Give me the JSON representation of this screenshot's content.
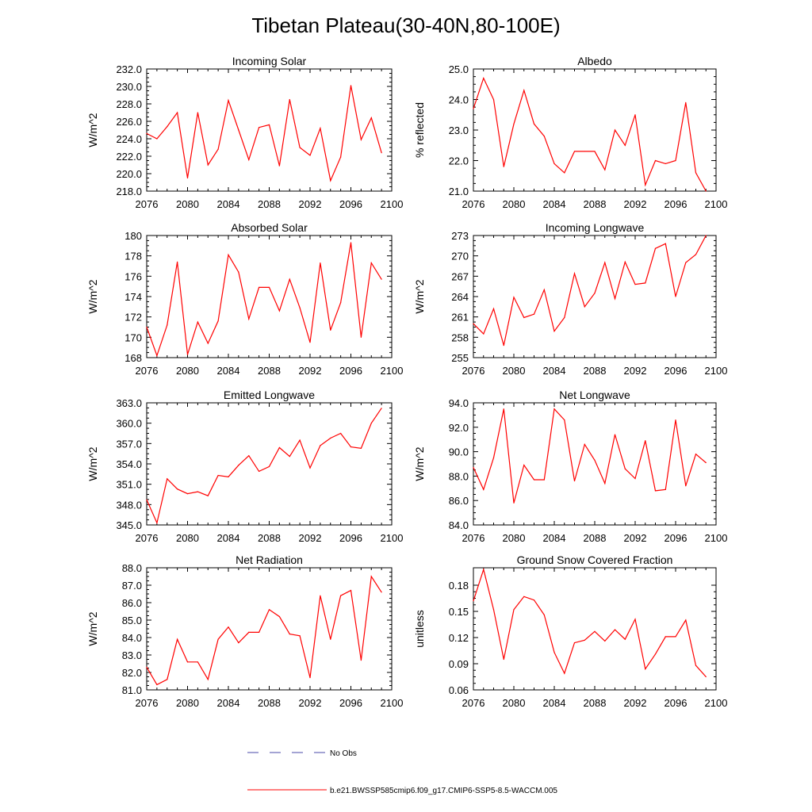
{
  "title": "Tibetan Plateau(30-40N,80-100E)",
  "legend": {
    "obs_label": "No Obs",
    "model_label": "b.e21.BWSSP585cmip6.f09_g17.CMIP6-SSP5-8.5-WACCM.005",
    "obs_color": "#4a4aa8",
    "model_color": "#ff0000"
  },
  "chart_data": [
    {
      "type": "line",
      "title": "Incoming Solar",
      "ylabel": "W/m^2",
      "xlim": [
        2076,
        2100
      ],
      "ylim": [
        218,
        232
      ],
      "xticks": [
        2076,
        2080,
        2084,
        2088,
        2092,
        2096,
        2100
      ],
      "xtick_labels": [
        "2076",
        "2080",
        "2084",
        "2088",
        "2092",
        "2096",
        "2100"
      ],
      "yticks": [
        218,
        220,
        222,
        224,
        226,
        228,
        230,
        232
      ],
      "ytick_labels": [
        "218.0",
        "220.0",
        "222.0",
        "224.0",
        "226.0",
        "228.0",
        "230.0",
        "232.0"
      ],
      "x": [
        2076,
        2077,
        2078,
        2079,
        2080,
        2081,
        2082,
        2083,
        2084,
        2085,
        2086,
        2087,
        2088,
        2089,
        2090,
        2091,
        2092,
        2093,
        2094,
        2095,
        2096,
        2097,
        2098,
        2099
      ],
      "y": [
        224.6,
        224.0,
        225.4,
        227.0,
        219.5,
        227.0,
        221.0,
        222.8,
        228.4,
        225.0,
        221.6,
        225.3,
        225.6,
        220.9,
        228.5,
        223.0,
        222.1,
        225.2,
        219.2,
        221.9,
        230.1,
        223.9,
        226.4,
        222.4
      ]
    },
    {
      "type": "line",
      "title": "Albedo",
      "ylabel": "% reflected",
      "xlim": [
        2076,
        2100
      ],
      "ylim": [
        21,
        25
      ],
      "xticks": [
        2076,
        2080,
        2084,
        2088,
        2092,
        2096,
        2100
      ],
      "xtick_labels": [
        "2076",
        "2080",
        "2084",
        "2088",
        "2092",
        "2096",
        "2100"
      ],
      "yticks": [
        21,
        22,
        23,
        24,
        25
      ],
      "ytick_labels": [
        "21.0",
        "22.0",
        "23.0",
        "24.0",
        "25.0"
      ],
      "x": [
        2076,
        2077,
        2078,
        2079,
        2080,
        2081,
        2082,
        2083,
        2084,
        2085,
        2086,
        2087,
        2088,
        2089,
        2090,
        2091,
        2092,
        2093,
        2094,
        2095,
        2096,
        2097,
        2098,
        2099
      ],
      "y": [
        23.7,
        24.7,
        24.0,
        21.8,
        23.2,
        24.3,
        23.2,
        22.8,
        21.9,
        21.6,
        22.3,
        22.3,
        22.3,
        21.7,
        23.0,
        22.5,
        23.5,
        21.2,
        22.0,
        21.9,
        22.0,
        23.9,
        21.6,
        21.0
      ]
    },
    {
      "type": "line",
      "title": "Absorbed Solar",
      "ylabel": "W/m^2",
      "xlim": [
        2076,
        2100
      ],
      "ylim": [
        168,
        180
      ],
      "xticks": [
        2076,
        2080,
        2084,
        2088,
        2092,
        2096,
        2100
      ],
      "xtick_labels": [
        "2076",
        "2080",
        "2084",
        "2088",
        "2092",
        "2096",
        "2100"
      ],
      "yticks": [
        168,
        170,
        172,
        174,
        176,
        178,
        180
      ],
      "ytick_labels": [
        "168",
        "170",
        "172",
        "174",
        "176",
        "178",
        "180"
      ],
      "x": [
        2076,
        2077,
        2078,
        2079,
        2080,
        2081,
        2082,
        2083,
        2084,
        2085,
        2086,
        2087,
        2088,
        2089,
        2090,
        2091,
        2092,
        2093,
        2094,
        2095,
        2096,
        2097,
        2098,
        2099
      ],
      "y": [
        171.0,
        168.2,
        171.2,
        177.4,
        168.3,
        171.5,
        169.4,
        171.6,
        178.1,
        176.4,
        171.8,
        174.9,
        174.9,
        172.6,
        175.7,
        172.9,
        169.5,
        177.3,
        170.7,
        173.4,
        179.3,
        170.0,
        177.3,
        175.7
      ]
    },
    {
      "type": "line",
      "title": "Incoming Longwave",
      "ylabel": "W/m^2",
      "xlim": [
        2076,
        2100
      ],
      "ylim": [
        255,
        273
      ],
      "xticks": [
        2076,
        2080,
        2084,
        2088,
        2092,
        2096,
        2100
      ],
      "xtick_labels": [
        "2076",
        "2080",
        "2084",
        "2088",
        "2092",
        "2096",
        "2100"
      ],
      "yticks": [
        255,
        258,
        261,
        264,
        267,
        270,
        273
      ],
      "ytick_labels": [
        "255",
        "258",
        "261",
        "264",
        "267",
        "270",
        "273"
      ],
      "x": [
        2076,
        2077,
        2078,
        2079,
        2080,
        2081,
        2082,
        2083,
        2084,
        2085,
        2086,
        2087,
        2088,
        2089,
        2090,
        2091,
        2092,
        2093,
        2094,
        2095,
        2096,
        2097,
        2098,
        2099
      ],
      "y": [
        260.0,
        258.5,
        262.2,
        256.8,
        263.9,
        260.9,
        261.4,
        265.0,
        258.9,
        260.9,
        267.4,
        262.5,
        264.5,
        269.0,
        263.7,
        269.1,
        265.8,
        266.0,
        271.1,
        271.8,
        264.0,
        269.0,
        270.2,
        273.0
      ]
    },
    {
      "type": "line",
      "title": "Emitted Longwave",
      "ylabel": "W/m^2",
      "xlim": [
        2076,
        2100
      ],
      "ylim": [
        345,
        363
      ],
      "xticks": [
        2076,
        2080,
        2084,
        2088,
        2092,
        2096,
        2100
      ],
      "xtick_labels": [
        "2076",
        "2080",
        "2084",
        "2088",
        "2092",
        "2096",
        "2100"
      ],
      "yticks": [
        345,
        348,
        351,
        354,
        357,
        360,
        363
      ],
      "ytick_labels": [
        "345.0",
        "348.0",
        "351.0",
        "354.0",
        "357.0",
        "360.0",
        "363.0"
      ],
      "x": [
        2076,
        2077,
        2078,
        2079,
        2080,
        2081,
        2082,
        2083,
        2084,
        2085,
        2086,
        2087,
        2088,
        2089,
        2090,
        2091,
        2092,
        2093,
        2094,
        2095,
        2096,
        2097,
        2098,
        2099
      ],
      "y": [
        348.7,
        345.3,
        351.8,
        350.3,
        349.6,
        349.9,
        349.3,
        352.3,
        352.1,
        353.8,
        355.2,
        352.9,
        353.6,
        356.4,
        355.1,
        357.5,
        353.4,
        356.7,
        357.8,
        358.5,
        356.5,
        356.3,
        360.0,
        362.2
      ]
    },
    {
      "type": "line",
      "title": "Net Longwave",
      "ylabel": "W/m^2",
      "xlim": [
        2076,
        2100
      ],
      "ylim": [
        84,
        94
      ],
      "xticks": [
        2076,
        2080,
        2084,
        2088,
        2092,
        2096,
        2100
      ],
      "xtick_labels": [
        "2076",
        "2080",
        "2084",
        "2088",
        "2092",
        "2096",
        "2100"
      ],
      "yticks": [
        84,
        86,
        88,
        90,
        92,
        94
      ],
      "ytick_labels": [
        "84.0",
        "86.0",
        "88.0",
        "90.0",
        "92.0",
        "94.0"
      ],
      "x": [
        2076,
        2077,
        2078,
        2079,
        2080,
        2081,
        2082,
        2083,
        2084,
        2085,
        2086,
        2087,
        2088,
        2089,
        2090,
        2091,
        2092,
        2093,
        2094,
        2095,
        2096,
        2097,
        2098,
        2099
      ],
      "y": [
        88.7,
        86.9,
        89.5,
        93.5,
        85.8,
        88.9,
        87.7,
        87.7,
        93.5,
        92.6,
        87.6,
        90.6,
        89.3,
        87.4,
        91.4,
        88.6,
        87.8,
        90.9,
        86.8,
        86.9,
        92.6,
        87.2,
        89.8,
        89.1
      ]
    },
    {
      "type": "line",
      "title": "Net Radiation",
      "ylabel": "W/m^2",
      "xlim": [
        2076,
        2100
      ],
      "ylim": [
        81,
        88
      ],
      "xticks": [
        2076,
        2080,
        2084,
        2088,
        2092,
        2096,
        2100
      ],
      "xtick_labels": [
        "2076",
        "2080",
        "2084",
        "2088",
        "2092",
        "2096",
        "2100"
      ],
      "yticks": [
        81,
        82,
        83,
        84,
        85,
        86,
        87,
        88
      ],
      "ytick_labels": [
        "81.0",
        "82.0",
        "83.0",
        "84.0",
        "85.0",
        "86.0",
        "87.0",
        "88.0"
      ],
      "x": [
        2076,
        2077,
        2078,
        2079,
        2080,
        2081,
        2082,
        2083,
        2084,
        2085,
        2086,
        2087,
        2088,
        2089,
        2090,
        2091,
        2092,
        2093,
        2094,
        2095,
        2096,
        2097,
        2098,
        2099
      ],
      "y": [
        82.3,
        81.3,
        81.6,
        83.9,
        82.6,
        82.6,
        81.6,
        83.9,
        84.6,
        83.7,
        84.3,
        84.3,
        85.6,
        85.2,
        84.2,
        84.1,
        81.7,
        86.4,
        83.9,
        86.4,
        86.7,
        82.7,
        87.5,
        86.6
      ]
    },
    {
      "type": "line",
      "title": "Ground Snow Covered Fraction",
      "ylabel": "unitless",
      "xlim": [
        2076,
        2100
      ],
      "ylim": [
        0.06,
        0.2
      ],
      "xticks": [
        2076,
        2080,
        2084,
        2088,
        2092,
        2096,
        2100
      ],
      "xtick_labels": [
        "2076",
        "2080",
        "2084",
        "2088",
        "2092",
        "2096",
        "2100"
      ],
      "yticks": [
        0.06,
        0.09,
        0.12,
        0.15,
        0.18
      ],
      "ytick_labels": [
        "0.06",
        "0.09",
        "0.12",
        "0.15",
        "0.18"
      ],
      "x": [
        2076,
        2077,
        2078,
        2079,
        2080,
        2081,
        2082,
        2083,
        2084,
        2085,
        2086,
        2087,
        2088,
        2089,
        2090,
        2091,
        2092,
        2093,
        2094,
        2095,
        2096,
        2097,
        2098,
        2099
      ],
      "y": [
        0.162,
        0.198,
        0.152,
        0.095,
        0.152,
        0.167,
        0.163,
        0.146,
        0.103,
        0.079,
        0.114,
        0.117,
        0.127,
        0.116,
        0.129,
        0.118,
        0.141,
        0.084,
        0.101,
        0.121,
        0.121,
        0.14,
        0.088,
        0.075
      ]
    }
  ]
}
